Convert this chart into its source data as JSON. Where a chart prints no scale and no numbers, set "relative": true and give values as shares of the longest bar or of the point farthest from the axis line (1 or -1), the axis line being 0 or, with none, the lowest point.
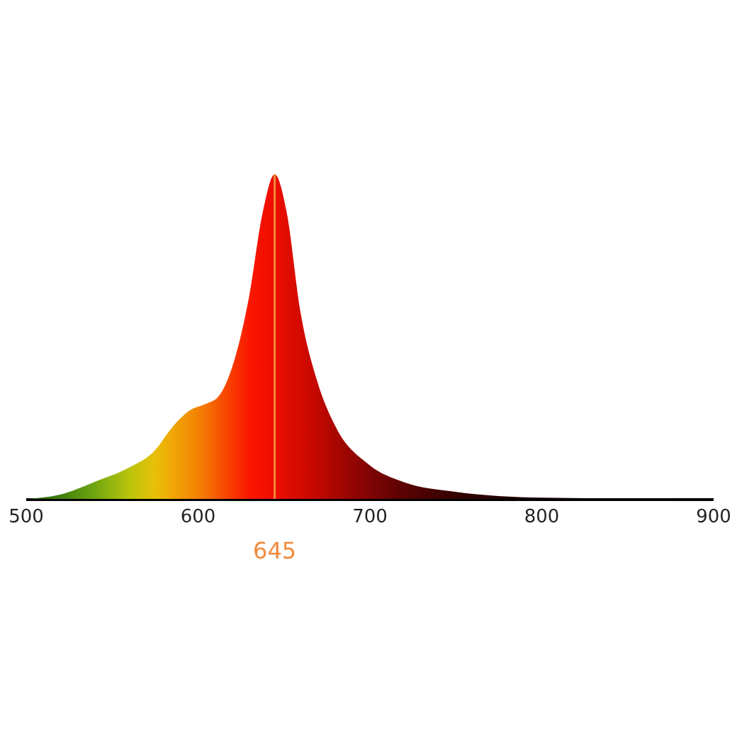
{
  "chart_data": {
    "type": "area",
    "relative": true,
    "x": [
      500,
      520,
      540,
      560,
      575,
      585,
      595,
      605,
      612,
      620,
      630,
      638,
      645,
      652,
      660,
      670,
      680,
      700,
      720,
      750,
      800,
      900
    ],
    "values": [
      0,
      0.013,
      0.052,
      0.096,
      0.148,
      0.218,
      0.271,
      0.293,
      0.314,
      0.402,
      0.62,
      0.882,
      1,
      0.882,
      0.576,
      0.358,
      0.227,
      0.105,
      0.052,
      0.022,
      0.004,
      0
    ],
    "colors": [
      "#1e5a10",
      "#3f7f10",
      "#6fa510",
      "#b8c40c",
      "#e8c008",
      "#f0a806",
      "#f29004",
      "#f47403",
      "#f65802",
      "#f83a01",
      "#fb1800",
      "#f41000",
      "#ec0e00",
      "#e00c00",
      "#d40a00",
      "#c20800",
      "#aa0600",
      "#800404",
      "#5a0202",
      "#340101",
      "#140000",
      "#080000"
    ],
    "xlim": [
      500,
      900
    ],
    "xticks": [
      500,
      600,
      700,
      800,
      900
    ],
    "ref_lines": [
      {
        "axis": "x",
        "value": 645,
        "label": "645",
        "color": "#f08a3c"
      }
    ]
  }
}
